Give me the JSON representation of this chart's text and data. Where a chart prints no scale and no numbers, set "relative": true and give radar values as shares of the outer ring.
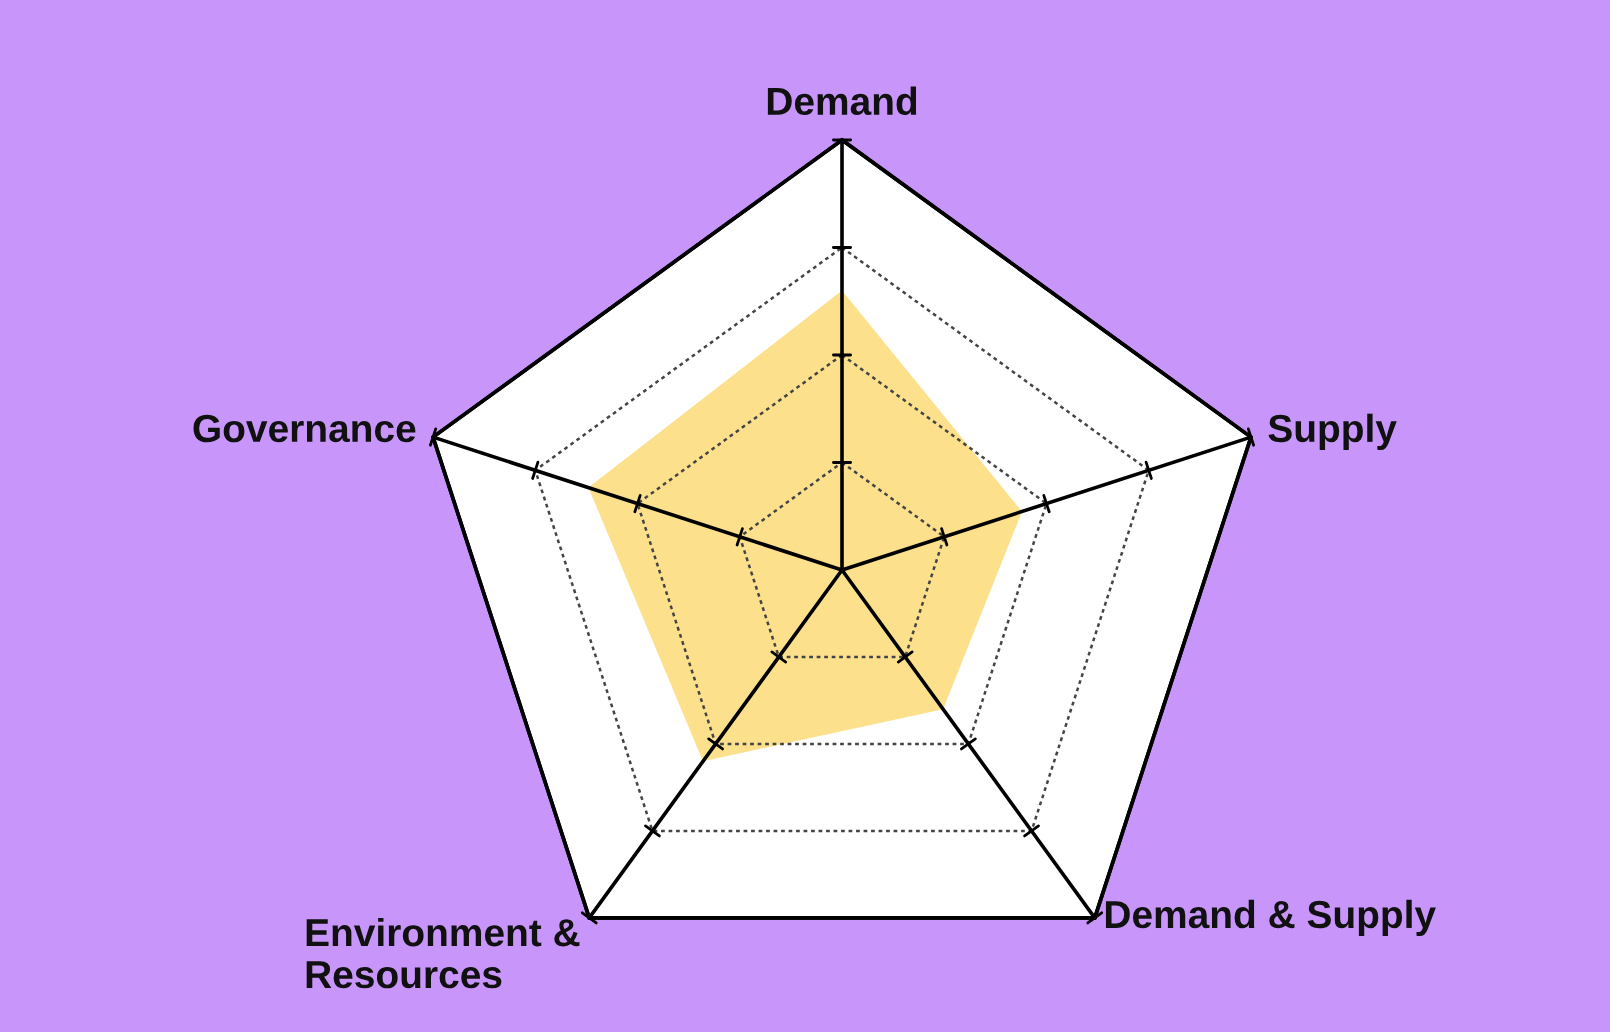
{
  "chart_data": {
    "type": "radar",
    "relative": true,
    "grid": true,
    "categories": [
      "Demand",
      "Supply",
      "Demand & Supply",
      "Environment &\nResources",
      "Governance"
    ],
    "series": [
      {
        "color": "#fde08c",
        "values": [
          0.65,
          0.44,
          0.4,
          0.55,
          0.62
        ]
      }
    ]
  }
}
